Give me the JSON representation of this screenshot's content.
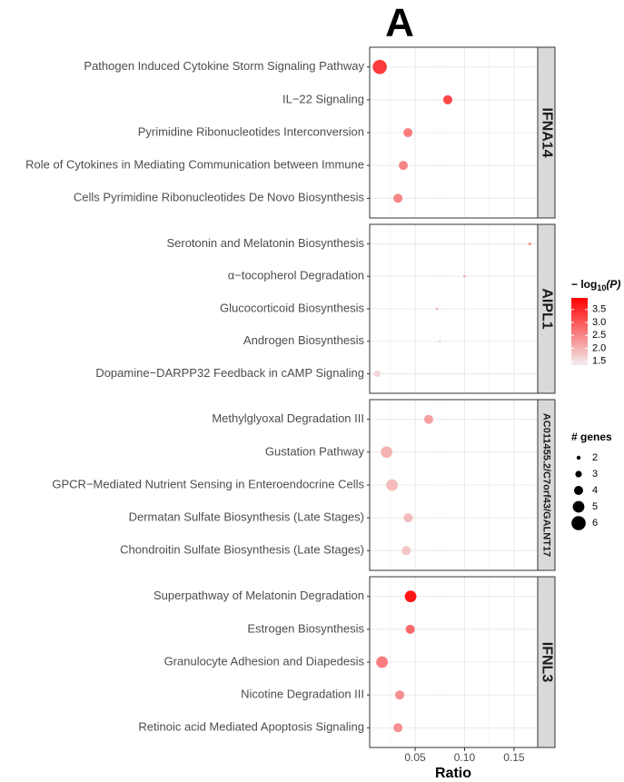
{
  "chart_data": {
    "type": "dot",
    "title": "A",
    "x_label": "Ratio",
    "xlim": [
      0.004,
      0.174
    ],
    "xticks": [
      0.05,
      {
        "value": 0.1,
        "label": "0.10"
      },
      0.15
    ],
    "x_minor_ticks": [
      0.025,
      0.075,
      0.125
    ],
    "grid": true,
    "low_color": "#f2eef0",
    "high_color": "#ff0000",
    "color_legend_title": {
      "main": "− log",
      "sub": "10",
      "tail": "(P)"
    },
    "color_lim": [
      1.35,
      3.95
    ],
    "color_ticks": [
      {
        "value": 1.5,
        "label": "1.5"
      },
      {
        "value": 2,
        "label": "2.0"
      },
      {
        "value": 2.5,
        "label": "2.5"
      },
      {
        "value": 3,
        "label": "3.0"
      },
      {
        "value": 3.5,
        "label": "3.5"
      }
    ],
    "size_legend_title": "# genes",
    "size_legend": [
      2,
      3,
      4,
      5,
      6
    ],
    "facets": [
      {
        "strip": "IFNA14",
        "categories": [
          "Pathogen Induced Cytokine Storm Signaling Pathway",
          "IL−22 Signaling",
          "Pyrimidine Ribonucleotides Interconversion",
          "Role of Cytokines in Mediating Communication between Immune",
          "Cells Pyrimidine Ribonucleotides De Novo Biosynthesis"
        ],
        "x": [
          0.0142,
          0.083,
          0.0427,
          0.038,
          0.0326
        ],
        "genes": [
          6,
          4,
          4,
          4,
          4
        ],
        "neglog10p": [
          3.3,
          3.2,
          2.6,
          2.5,
          2.5
        ]
      },
      {
        "strip": "AIPL1",
        "categories": [
          "Serotonin and Melatonin Biosynthesis",
          "α−tocopherol Degradation",
          "Glucocorticoid Biosynthesis",
          "Androgen Biosynthesis",
          "Dopamine−DARPP32 Feedback in cAMP Signaling"
        ],
        "x": [
          0.166,
          0.1,
          0.072,
          0.075,
          0.0115
        ],
        "genes": [
          1,
          1,
          1,
          1,
          3
        ],
        "neglog10p": [
          2.4,
          2.0,
          1.9,
          1.6,
          1.6
        ]
      },
      {
        "strip": "AC011455.2/C7orf43/GALNT17",
        "categories": [
          "Methylglyoxal Degradation III",
          "Gustation Pathway",
          "GPCR−Mediated Nutrient Sensing in Enteroendocrine Cells",
          "Dermatan Sulfate Biosynthesis (Late Stages)",
          "Chondroitin Sulfate Biosynthesis (Late Stages)"
        ],
        "x": [
          0.0637,
          0.0211,
          0.0266,
          0.043,
          0.041
        ],
        "genes": [
          4,
          5,
          5,
          4,
          4
        ],
        "neglog10p": [
          2.2,
          2.0,
          1.9,
          1.9,
          1.8
        ]
      },
      {
        "strip": "IFNL3",
        "categories": [
          "Superpathway of Melatonin Degradation",
          "Estrogen Biosynthesis",
          "Granulocyte Adhesion and Diapedesis",
          "Nicotine Degradation III",
          "Retinoic acid Mediated Apoptosis Signaling"
        ],
        "x": [
          0.0454,
          0.045,
          0.0165,
          0.0344,
          0.0326
        ],
        "genes": [
          5,
          4,
          5,
          4,
          4
        ],
        "neglog10p": [
          3.7,
          2.8,
          2.6,
          2.4,
          2.4
        ]
      }
    ]
  }
}
